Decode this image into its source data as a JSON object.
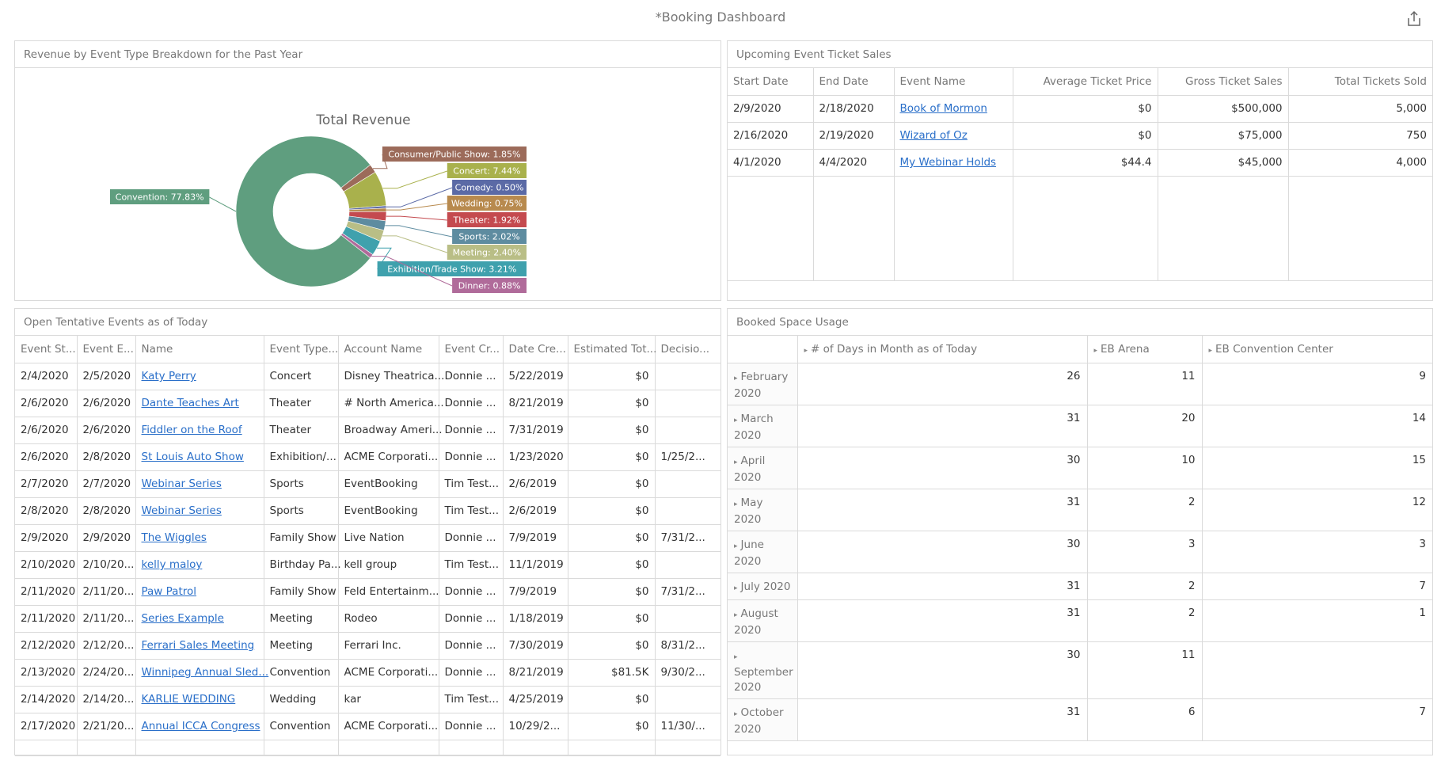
{
  "dashboard": {
    "title": "*Booking Dashboard",
    "share_icon": "share-icon"
  },
  "revenue_panel": {
    "title": "Revenue by Event Type Breakdown for the Past Year"
  },
  "chart_data": {
    "type": "pie",
    "title": "Total Revenue",
    "categories": [
      "Convention",
      "Consumer/Public Show",
      "Concert",
      "Comedy",
      "Wedding",
      "Theater",
      "Sports",
      "Meeting",
      "Exhibition/Trade Show",
      "Dinner"
    ],
    "values": [
      77.83,
      1.85,
      7.44,
      0.5,
      0.75,
      1.92,
      2.02,
      2.4,
      3.21,
      0.88
    ],
    "labels": [
      "Convention: 77.83%",
      "Consumer/Public Show: 1.85%",
      "Concert: 7.44%",
      "Comedy: 0.50%",
      "Wedding: 0.75%",
      "Theater: 1.92%",
      "Sports: 2.02%",
      "Meeting: 2.40%",
      "Exhibition/Trade Show: 3.21%",
      "Dinner: 0.88%"
    ],
    "colors": [
      "#5f9e7f",
      "#9c6b5a",
      "#a9b14c",
      "#5b6aa6",
      "#b88a4e",
      "#c44a4f",
      "#5e8ca0",
      "#b9be86",
      "#3fa1ad",
      "#b06b9a"
    ],
    "donut": true,
    "legend": "none"
  },
  "upcoming_panel": {
    "title": "Upcoming Event Ticket Sales",
    "columns": [
      "Start Date",
      "End Date",
      "Event Name",
      "Average Ticket Price",
      "Gross Ticket Sales",
      "Total Tickets Sold"
    ],
    "rows": [
      [
        "2/9/2020",
        "2/18/2020",
        "Book of Mormon",
        "$0",
        "$500,000",
        "5,000"
      ],
      [
        "2/16/2020",
        "2/19/2020",
        "Wizard of Oz",
        "$0",
        "$75,000",
        "750"
      ],
      [
        "4/1/2020",
        "4/4/2020",
        "My Webinar Holds",
        "$44.4",
        "$45,000",
        "4,000"
      ]
    ]
  },
  "tentative_panel": {
    "title": "Open Tentative Events as of Today",
    "columns": [
      "Event St...",
      "Event E...",
      "Name",
      "Event Type...",
      "Account Name",
      "Event Cr...",
      "Date Cre...",
      "Estimated Tot...",
      "Decisio..."
    ],
    "rows": [
      [
        "2/4/2020",
        "2/5/2020",
        "Katy Perry",
        "Concert",
        "Disney Theatrica...",
        "Donnie ...",
        "5/22/2019",
        "$0",
        ""
      ],
      [
        "2/6/2020",
        "2/6/2020",
        "Dante Teaches Art",
        "Theater",
        "# North America...",
        "Donnie ...",
        "8/21/2019",
        "$0",
        ""
      ],
      [
        "2/6/2020",
        "2/6/2020",
        "Fiddler on the Roof",
        "Theater",
        "Broadway Ameri...",
        "Donnie ...",
        "7/31/2019",
        "$0",
        ""
      ],
      [
        "2/6/2020",
        "2/8/2020",
        "St Louis Auto Show",
        "Exhibition/...",
        "ACME Corporati...",
        "Donnie ...",
        "1/23/2020",
        "$0",
        "1/25/2..."
      ],
      [
        "2/7/2020",
        "2/7/2020",
        "Webinar Series",
        "Sports",
        "EventBooking",
        "Tim Test...",
        "2/6/2019",
        "$0",
        ""
      ],
      [
        "2/8/2020",
        "2/8/2020",
        "Webinar Series",
        "Sports",
        "EventBooking",
        "Tim Test...",
        "2/6/2019",
        "$0",
        ""
      ],
      [
        "2/9/2020",
        "2/9/2020",
        "The Wiggles",
        "Family Show",
        "Live Nation",
        "Donnie ...",
        "7/9/2019",
        "$0",
        "7/31/2..."
      ],
      [
        "2/10/2020",
        "2/10/20...",
        "kelly maloy",
        "Birthday Pa...",
        "kell group",
        "Tim Test...",
        "11/1/2019",
        "$0",
        ""
      ],
      [
        "2/11/2020",
        "2/11/20...",
        "Paw Patrol",
        "Family Show",
        "Feld Entertainm...",
        "Donnie ...",
        "7/9/2019",
        "$0",
        "7/31/2..."
      ],
      [
        "2/11/2020",
        "2/11/20...",
        "Series Example",
        "Meeting",
        "Rodeo",
        "Donnie ...",
        "1/18/2019",
        "$0",
        ""
      ],
      [
        "2/12/2020",
        "2/12/20...",
        "Ferrari Sales Meeting",
        "Meeting",
        "Ferrari Inc.",
        "Donnie ...",
        "7/30/2019",
        "$0",
        "8/31/2..."
      ],
      [
        "2/13/2020",
        "2/24/20...",
        "Winnipeg Annual Sled...",
        "Convention",
        "ACME Corporati...",
        "Donnie ...",
        "8/21/2019",
        "$81.5K",
        "9/30/2..."
      ],
      [
        "2/14/2020",
        "2/14/20...",
        "KARLIE WEDDING",
        "Wedding",
        "kar",
        "Tim Test...",
        "4/25/2019",
        "$0",
        ""
      ],
      [
        "2/17/2020",
        "2/21/20...",
        "Annual ICCA Congress",
        "Convention",
        "ACME Corporati...",
        "Donnie ...",
        "10/29/2...",
        "$0",
        "11/30/..."
      ]
    ]
  },
  "space_panel": {
    "title": "Booked Space Usage",
    "columns": [
      "",
      "# of Days in Month as of Today",
      "EB Arena",
      "EB Convention Center"
    ],
    "rows": [
      {
        "month": "February",
        "year": "2020",
        "days": "26",
        "arena": "11",
        "center": "9"
      },
      {
        "month": "March",
        "year": "2020",
        "days": "31",
        "arena": "20",
        "center": "14"
      },
      {
        "month": "April",
        "year": "2020",
        "days": "30",
        "arena": "10",
        "center": "15"
      },
      {
        "month": "May",
        "year": "2020",
        "days": "31",
        "arena": "2",
        "center": "12"
      },
      {
        "month": "June",
        "year": "2020",
        "days": "30",
        "arena": "3",
        "center": "3"
      },
      {
        "month": "July 2020",
        "year": "",
        "days": "31",
        "arena": "2",
        "center": "7"
      },
      {
        "month": "August",
        "year": "2020",
        "days": "31",
        "arena": "2",
        "center": "1"
      },
      {
        "month": "",
        "year": "September 2020",
        "days": "30",
        "arena": "11",
        "center": ""
      },
      {
        "month": "October",
        "year": "2020",
        "days": "31",
        "arena": "6",
        "center": "7"
      }
    ]
  }
}
